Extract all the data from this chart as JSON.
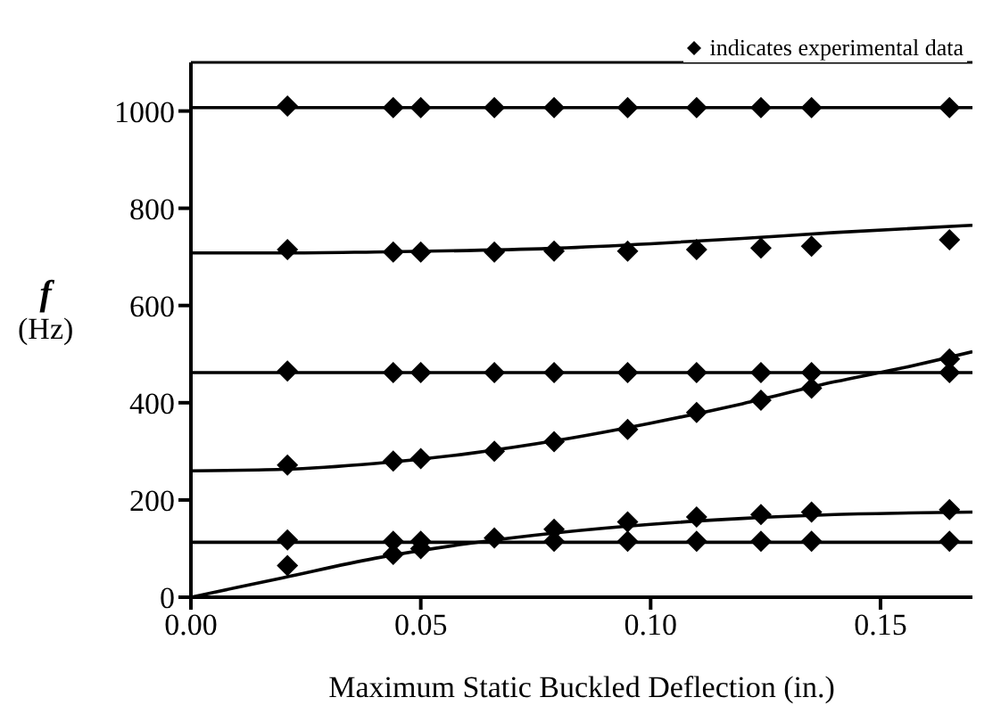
{
  "chart_data": {
    "type": "line",
    "xlabel": "Maximum Static Buckled Deflection (in.)",
    "ylabel": "f (Hz)",
    "xlim": [
      0,
      0.17
    ],
    "xticks": [
      {
        "value": 0,
        "label": "0.00"
      },
      {
        "value": 0.05,
        "label": "0.05"
      },
      {
        "value": 0.1,
        "label": "0.10"
      },
      {
        "value": 0.15,
        "label": "0.15"
      }
    ],
    "ylim": [
      0,
      1100
    ],
    "yticks": [
      0,
      200,
      400,
      600,
      800,
      1000
    ],
    "grid": false,
    "legend": "top right",
    "series": [
      {
        "type": "line",
        "color": "#000000",
        "x": [
          0,
          0.17
        ],
        "values": [
          1007,
          1007
        ]
      },
      {
        "type": "line",
        "color": "#000000",
        "x": [
          0,
          0.02,
          0.04,
          0.06,
          0.08,
          0.1,
          0.12,
          0.14,
          0.17
        ],
        "values": [
          708,
          708,
          710,
          713,
          718,
          727,
          738,
          750,
          765
        ]
      },
      {
        "type": "line",
        "color": "#000000",
        "x": [
          0,
          0.17
        ],
        "values": [
          462,
          462
        ]
      },
      {
        "type": "line",
        "color": "#000000",
        "x": [
          0,
          0.02,
          0.04,
          0.06,
          0.08,
          0.1,
          0.12,
          0.14,
          0.155,
          0.17
        ],
        "values": [
          260,
          263,
          275,
          295,
          323,
          358,
          398,
          443,
          472,
          505
        ]
      },
      {
        "type": "line",
        "color": "#000000",
        "x": [
          0,
          0.17
        ],
        "values": [
          113,
          113
        ]
      },
      {
        "type": "line",
        "color": "#000000",
        "x": [
          0,
          0.02,
          0.04,
          0.06,
          0.08,
          0.1,
          0.12,
          0.14,
          0.17
        ],
        "values": [
          0,
          40,
          80,
          110,
          133,
          150,
          162,
          170,
          175
        ]
      },
      {
        "type": "scatter",
        "name": "indicates experimental data",
        "color": "#000000",
        "marker": "diamond",
        "x": [
          0.021,
          0.044,
          0.05,
          0.066,
          0.079,
          0.095,
          0.11,
          0.124,
          0.135,
          0.165,
          0.021,
          0.044,
          0.05,
          0.066,
          0.079,
          0.095,
          0.11,
          0.124,
          0.135,
          0.165,
          0.021,
          0.044,
          0.05,
          0.066,
          0.079,
          0.095,
          0.11,
          0.124,
          0.135,
          0.165,
          0.021,
          0.044,
          0.05,
          0.066,
          0.079,
          0.095,
          0.11,
          0.124,
          0.135,
          0.165,
          0.021,
          0.044,
          0.05,
          0.066,
          0.079,
          0.095,
          0.11,
          0.124,
          0.135,
          0.165,
          0.021,
          0.044,
          0.05,
          0.066,
          0.079,
          0.095,
          0.11,
          0.124,
          0.135,
          0.165
        ],
        "values": [
          1010,
          1007,
          1007,
          1007,
          1007,
          1007,
          1007,
          1007,
          1007,
          1007,
          715,
          710,
          710,
          710,
          712,
          712,
          715,
          718,
          722,
          735,
          465,
          462,
          462,
          462,
          462,
          462,
          462,
          462,
          462,
          462,
          272,
          280,
          285,
          300,
          320,
          345,
          380,
          405,
          430,
          490,
          118,
          115,
          115,
          null,
          115,
          115,
          115,
          115,
          115,
          115,
          65,
          88,
          100,
          122,
          140,
          155,
          165,
          170,
          175,
          180
        ]
      }
    ]
  }
}
